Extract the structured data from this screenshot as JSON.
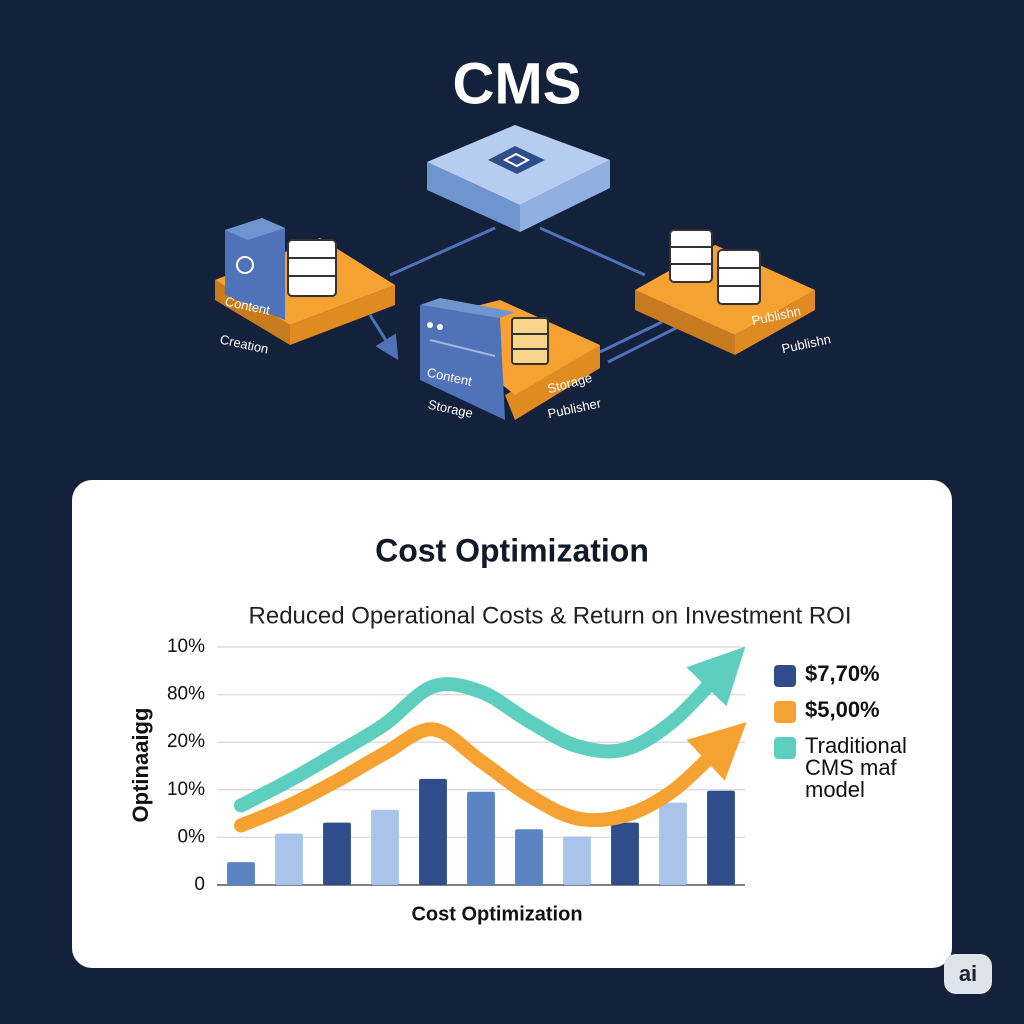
{
  "diagram": {
    "title": "CMS",
    "labels": [
      "Content",
      "Creation",
      "Content",
      "Storage",
      "Storage",
      "Publisher",
      "Publishn",
      "Publishn"
    ]
  },
  "badge": "ai",
  "chart_data": {
    "type": "bar",
    "title": "Cost Optimization",
    "subtitle": "Reduced Operational Costs & Return on Investment ROI",
    "x_label": "Cost Optimization",
    "y_label": "Optinaaigg",
    "categories": [
      null,
      null,
      null,
      null,
      null,
      null,
      null,
      null,
      null,
      null,
      null
    ],
    "ylim": [
      0,
      5
    ],
    "yticks": [
      {
        "value": 0,
        "label": "0"
      },
      {
        "value": 1,
        "label": "0%"
      },
      {
        "value": 2,
        "label": "10%"
      },
      {
        "value": 3,
        "label": "20%"
      },
      {
        "value": 4,
        "label": "80%"
      },
      {
        "value": 5,
        "label": "10%"
      }
    ],
    "grid": true,
    "series": [
      {
        "name": "$7,70%",
        "color": "#2f4d8a",
        "values": [
          0.48,
          1.08,
          1.31,
          1.58,
          2.23,
          1.96,
          1.17,
          1.02,
          1.31,
          1.73,
          1.98
        ],
        "bar_colors": [
          "#5b84c4",
          "#a9c4ea",
          "#2f4d8a",
          "#a9c4ea",
          "#2f4d8a",
          "#5b84c4",
          "#5b84c4",
          "#a9c4ea",
          "#2f4d8a",
          "#a9c4ea",
          "#2f4d8a"
        ]
      },
      {
        "name": "$5,00%",
        "type": "line",
        "color": "#f5a232",
        "values": [
          1.25,
          1.67,
          2.19,
          2.77,
          3.27,
          2.6,
          1.88,
          1.4,
          1.46,
          1.98,
          2.92
        ]
      },
      {
        "name": "Traditional CMS maf model",
        "type": "line",
        "color": "#5ecfbe",
        "values": [
          1.67,
          2.19,
          2.77,
          3.38,
          4.17,
          4.06,
          3.44,
          2.92,
          2.85,
          3.44,
          4.48
        ]
      }
    ]
  }
}
